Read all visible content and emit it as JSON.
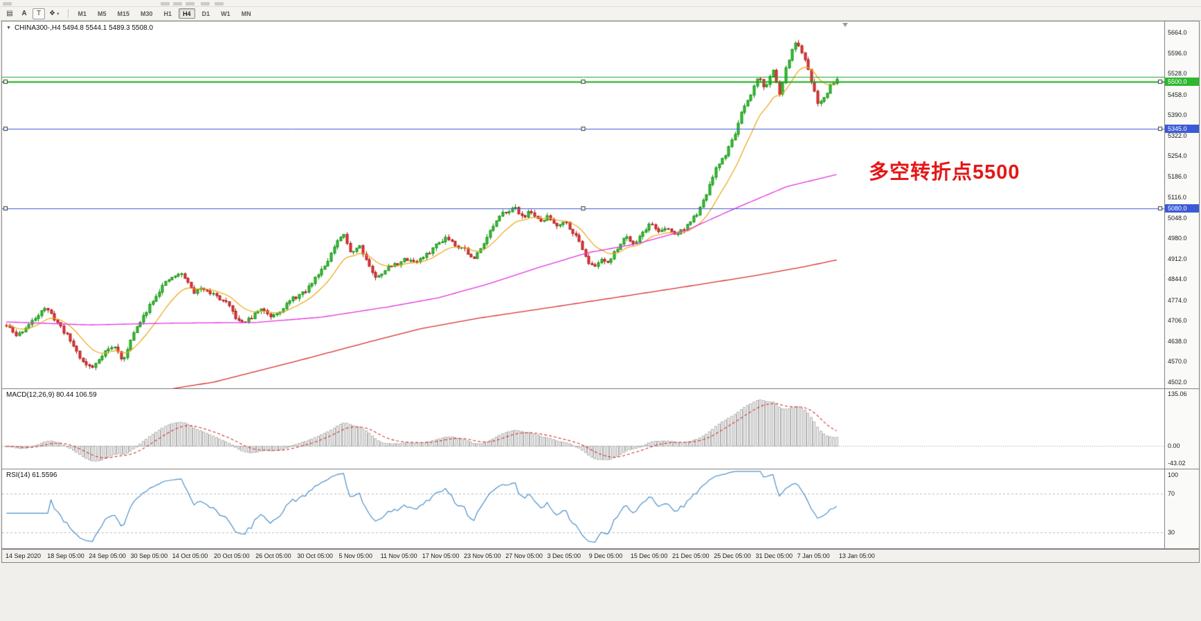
{
  "window": {
    "bg": "#f0efec"
  },
  "toolbar": {
    "tools": [
      {
        "name": "chart-grid-tool-icon",
        "glyph": "▤"
      },
      {
        "name": "font-tool-icon",
        "glyph": "A",
        "bold": true
      },
      {
        "name": "text-label-tool-icon",
        "glyph": "T",
        "boxed": true
      },
      {
        "name": "line-style-tool-icon",
        "glyph": "❖",
        "caret": "▾"
      }
    ],
    "timeframes": [
      "M1",
      "M5",
      "M15",
      "M30",
      "H1",
      "H4",
      "D1",
      "W1",
      "MN"
    ],
    "active_timeframe": "H4"
  },
  "chart": {
    "title": "CHINA300-,H4  5494.8 5544.1 5489.3 5508.0",
    "menu_icon": "▼",
    "annotation": {
      "text": "多空转折点5500",
      "color": "#e41717"
    }
  },
  "macd_panel": {
    "title": "MACD(12,26,9) 80.44 106.59",
    "ticks": [
      "135.06",
      "0.00",
      "-43.02"
    ]
  },
  "rsi_panel": {
    "title": "RSI(14) 61.5596",
    "ticks": [
      "100",
      "70",
      "30"
    ]
  },
  "time_axis": {
    "labels": [
      "14 Sep 2020",
      "18 Sep 05:00",
      "24 Sep 05:00",
      "30 Sep 05:00",
      "14 Oct 05:00",
      "20 Oct 05:00",
      "26 Oct 05:00",
      "30 Oct 05:00",
      "5 Nov 05:00",
      "11 Nov 05:00",
      "17 Nov 05:00",
      "23 Nov 05:00",
      "27 Nov 05:00",
      "3 Dec 05:00",
      "9 Dec 05:00",
      "15 Dec 05:00",
      "21 Dec 05:00",
      "25 Dec 05:00",
      "31 Dec 05:00",
      "7 Jan 05:00",
      "13 Jan 05:00"
    ]
  },
  "chart_data": {
    "type": "candlestick",
    "symbol": "CHINA300-",
    "timeframe": "H4",
    "last_ohlc": {
      "open": 5494.8,
      "high": 5544.1,
      "low": 5489.3,
      "close": 5508.0
    },
    "price_axis": {
      "min": 4481,
      "max": 5701,
      "ticks": [
        "5664.0",
        "5596.0",
        "5528.0",
        "5458.0",
        "5390.0",
        "5322.0",
        "5254.0",
        "5186.0",
        "5116.0",
        "5048.0",
        "4980.0",
        "4912.0",
        "4844.0",
        "4774.0",
        "4706.0",
        "4638.0",
        "4570.0",
        "4502.0"
      ]
    },
    "candle_count": 262,
    "seed": 11,
    "noise": 13,
    "wick": 11,
    "data_fraction": 0.717,
    "colors": {
      "up_stroke": "#0f8f0f",
      "up_fill": "#3cc43c",
      "down_stroke": "#b01818",
      "down_fill": "#e23d3d"
    },
    "price_path": [
      [
        0.0,
        4690
      ],
      [
        0.012,
        4655
      ],
      [
        0.03,
        4700
      ],
      [
        0.045,
        4752
      ],
      [
        0.058,
        4712
      ],
      [
        0.075,
        4648
      ],
      [
        0.092,
        4568
      ],
      [
        0.103,
        4548
      ],
      [
        0.118,
        4605
      ],
      [
        0.13,
        4620
      ],
      [
        0.141,
        4570
      ],
      [
        0.15,
        4652
      ],
      [
        0.162,
        4705
      ],
      [
        0.174,
        4768
      ],
      [
        0.188,
        4822
      ],
      [
        0.2,
        4852
      ],
      [
        0.212,
        4862
      ],
      [
        0.225,
        4800
      ],
      [
        0.238,
        4815
      ],
      [
        0.252,
        4788
      ],
      [
        0.266,
        4760
      ],
      [
        0.28,
        4700
      ],
      [
        0.293,
        4710
      ],
      [
        0.306,
        4748
      ],
      [
        0.318,
        4722
      ],
      [
        0.33,
        4742
      ],
      [
        0.345,
        4780
      ],
      [
        0.36,
        4802
      ],
      [
        0.372,
        4850
      ],
      [
        0.385,
        4900
      ],
      [
        0.396,
        4955
      ],
      [
        0.405,
        4995
      ],
      [
        0.415,
        4932
      ],
      [
        0.425,
        4958
      ],
      [
        0.435,
        4898
      ],
      [
        0.445,
        4845
      ],
      [
        0.457,
        4880
      ],
      [
        0.47,
        4895
      ],
      [
        0.482,
        4912
      ],
      [
        0.493,
        4902
      ],
      [
        0.505,
        4922
      ],
      [
        0.518,
        4960
      ],
      [
        0.53,
        4986
      ],
      [
        0.541,
        4958
      ],
      [
        0.552,
        4945
      ],
      [
        0.562,
        4905
      ],
      [
        0.573,
        4960
      ],
      [
        0.586,
        5020
      ],
      [
        0.6,
        5070
      ],
      [
        0.612,
        5080
      ],
      [
        0.622,
        5052
      ],
      [
        0.632,
        5070
      ],
      [
        0.642,
        5032
      ],
      [
        0.652,
        5052
      ],
      [
        0.662,
        5022
      ],
      [
        0.672,
        5040
      ],
      [
        0.682,
        5002
      ],
      [
        0.692,
        4958
      ],
      [
        0.7,
        4905
      ],
      [
        0.707,
        4880
      ],
      [
        0.716,
        4912
      ],
      [
        0.726,
        4902
      ],
      [
        0.736,
        4950
      ],
      [
        0.746,
        4990
      ],
      [
        0.756,
        4962
      ],
      [
        0.766,
        5000
      ],
      [
        0.776,
        5030
      ],
      [
        0.786,
        5002
      ],
      [
        0.796,
        5012
      ],
      [
        0.806,
        4992
      ],
      [
        0.816,
        5012
      ],
      [
        0.826,
        5042
      ],
      [
        0.836,
        5080
      ],
      [
        0.846,
        5150
      ],
      [
        0.856,
        5220
      ],
      [
        0.866,
        5260
      ],
      [
        0.876,
        5320
      ],
      [
        0.886,
        5400
      ],
      [
        0.896,
        5450
      ],
      [
        0.905,
        5520
      ],
      [
        0.914,
        5478
      ],
      [
        0.924,
        5545
      ],
      [
        0.931,
        5455
      ],
      [
        0.94,
        5555
      ],
      [
        0.95,
        5635
      ],
      [
        0.957,
        5598
      ],
      [
        0.964,
        5555
      ],
      [
        0.972,
        5478
      ],
      [
        0.978,
        5425
      ],
      [
        0.986,
        5452
      ],
      [
        0.994,
        5498
      ],
      [
        1.0,
        5508
      ]
    ],
    "ma": [
      {
        "name": "ma-fast-orange",
        "color": "#efa50f",
        "type": "ema",
        "period": 13,
        "width": 1.2
      },
      {
        "name": "ma-mid-magenta",
        "color": "#e332e3",
        "type": "path",
        "width": 1.3,
        "path": [
          [
            0,
            4702
          ],
          [
            0.1,
            4692
          ],
          [
            0.2,
            4698
          ],
          [
            0.3,
            4700
          ],
          [
            0.38,
            4718
          ],
          [
            0.46,
            4752
          ],
          [
            0.52,
            4782
          ],
          [
            0.58,
            4828
          ],
          [
            0.64,
            4882
          ],
          [
            0.7,
            4932
          ],
          [
            0.76,
            4962
          ],
          [
            0.82,
            5008
          ],
          [
            0.88,
            5082
          ],
          [
            0.94,
            5152
          ],
          [
            1.0,
            5192
          ]
        ]
      },
      {
        "name": "ma-slow-red",
        "color": "#d82e2e",
        "type": "path",
        "width": 1.3,
        "path": [
          [
            0,
            4370
          ],
          [
            0.12,
            4438
          ],
          [
            0.2,
            4480
          ],
          [
            0.25,
            4502
          ],
          [
            0.35,
            4572
          ],
          [
            0.45,
            4645
          ],
          [
            0.5,
            4680
          ],
          [
            0.57,
            4715
          ],
          [
            0.655,
            4750
          ],
          [
            0.75,
            4790
          ],
          [
            0.82,
            4820
          ],
          [
            0.9,
            4855
          ],
          [
            0.96,
            4885
          ],
          [
            1.0,
            4908
          ]
        ]
      }
    ],
    "hlines": [
      {
        "price": 5516,
        "color": "#16a816",
        "width": 1
      },
      {
        "price": 5500,
        "color": "#16a816",
        "width": 2,
        "tag": "5500.0",
        "tag_bg": "#2eb82e",
        "markers": true
      },
      {
        "price": 5345,
        "color": "#3b5bd6",
        "width": 1,
        "tag": "5345.0",
        "tag_bg": "#3b5bd6",
        "markers": true
      },
      {
        "price": 5080,
        "color": "#3b5bd6",
        "width": 1,
        "tag": "5080.0",
        "tag_bg": "#3b5bd6",
        "markers": true
      }
    ],
    "macd": {
      "fast": 12,
      "slow": 26,
      "signal": 9,
      "last_main": 80.44,
      "last_signal": 106.59,
      "hist_fill": "#ededed",
      "hist_stroke": "#b3b3b3",
      "signal_color": "#d82e2e",
      "range_min": -56
    },
    "rsi": {
      "period": 14,
      "last": 61.5596,
      "range": [
        14,
        95
      ],
      "levels": [
        70,
        30
      ],
      "line_color": "#4a8fcb",
      "level_color": "#bbbbbb"
    }
  }
}
